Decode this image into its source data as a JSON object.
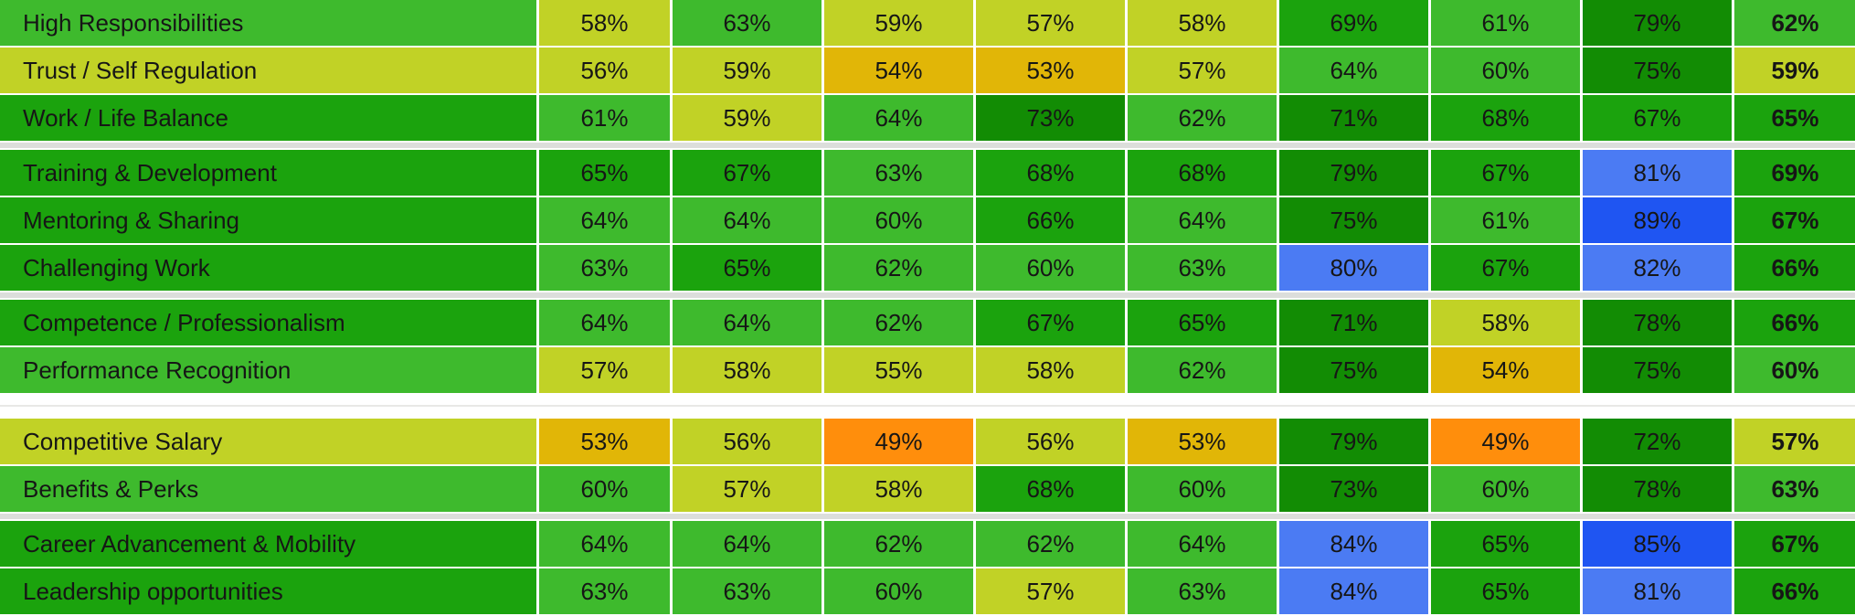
{
  "colors": {
    "o": "#ff8e0c",
    "y": "#e1b607",
    "yg": "#c1d226",
    "mg": "#3eba2d",
    "g": "#1ba30d",
    "dg": "#128c04",
    "b": "#4b7bf3",
    "db": "#1f55f2"
  },
  "chart_data": {
    "type": "heatmap",
    "value_suffix": "%",
    "value_columns": 9,
    "last_column_bold": true,
    "color_scale_hint": "orange=lowest, gold=low, yellow-green=mid-low, greens=mid-high, blue=highest",
    "groups": [
      {
        "gap_after": "band",
        "rows": [
          {
            "label": "High Responsibilities",
            "label_color": "mg",
            "cells": [
              {
                "v": "58%",
                "c": "yg"
              },
              {
                "v": "63%",
                "c": "mg"
              },
              {
                "v": "59%",
                "c": "yg"
              },
              {
                "v": "57%",
                "c": "yg"
              },
              {
                "v": "58%",
                "c": "yg"
              },
              {
                "v": "69%",
                "c": "g"
              },
              {
                "v": "61%",
                "c": "mg"
              },
              {
                "v": "79%",
                "c": "dg"
              },
              {
                "v": "62%",
                "c": "mg"
              }
            ]
          },
          {
            "label": "Trust / Self Regulation",
            "label_color": "yg",
            "cells": [
              {
                "v": "56%",
                "c": "yg"
              },
              {
                "v": "59%",
                "c": "yg"
              },
              {
                "v": "54%",
                "c": "y"
              },
              {
                "v": "53%",
                "c": "y"
              },
              {
                "v": "57%",
                "c": "yg"
              },
              {
                "v": "64%",
                "c": "mg"
              },
              {
                "v": "60%",
                "c": "mg"
              },
              {
                "v": "75%",
                "c": "dg"
              },
              {
                "v": "59%",
                "c": "yg"
              }
            ]
          },
          {
            "label": "Work / Life Balance",
            "label_color": "g",
            "cells": [
              {
                "v": "61%",
                "c": "mg"
              },
              {
                "v": "59%",
                "c": "yg"
              },
              {
                "v": "64%",
                "c": "mg"
              },
              {
                "v": "73%",
                "c": "dg"
              },
              {
                "v": "62%",
                "c": "mg"
              },
              {
                "v": "71%",
                "c": "dg"
              },
              {
                "v": "68%",
                "c": "g"
              },
              {
                "v": "67%",
                "c": "g"
              },
              {
                "v": "65%",
                "c": "g"
              }
            ]
          }
        ]
      },
      {
        "gap_after": "band",
        "rows": [
          {
            "label": "Training & Development",
            "label_color": "g",
            "cells": [
              {
                "v": "65%",
                "c": "g"
              },
              {
                "v": "67%",
                "c": "g"
              },
              {
                "v": "63%",
                "c": "mg"
              },
              {
                "v": "68%",
                "c": "g"
              },
              {
                "v": "68%",
                "c": "g"
              },
              {
                "v": "79%",
                "c": "dg"
              },
              {
                "v": "67%",
                "c": "g"
              },
              {
                "v": "81%",
                "c": "b"
              },
              {
                "v": "69%",
                "c": "g"
              }
            ]
          },
          {
            "label": "Mentoring & Sharing",
            "label_color": "g",
            "cells": [
              {
                "v": "64%",
                "c": "mg"
              },
              {
                "v": "64%",
                "c": "mg"
              },
              {
                "v": "60%",
                "c": "mg"
              },
              {
                "v": "66%",
                "c": "g"
              },
              {
                "v": "64%",
                "c": "mg"
              },
              {
                "v": "75%",
                "c": "dg"
              },
              {
                "v": "61%",
                "c": "mg"
              },
              {
                "v": "89%",
                "c": "db"
              },
              {
                "v": "67%",
                "c": "g"
              }
            ]
          },
          {
            "label": "Challenging Work",
            "label_color": "g",
            "cells": [
              {
                "v": "63%",
                "c": "mg"
              },
              {
                "v": "65%",
                "c": "g"
              },
              {
                "v": "62%",
                "c": "mg"
              },
              {
                "v": "60%",
                "c": "mg"
              },
              {
                "v": "63%",
                "c": "mg"
              },
              {
                "v": "80%",
                "c": "b"
              },
              {
                "v": "67%",
                "c": "g"
              },
              {
                "v": "82%",
                "c": "b"
              },
              {
                "v": "66%",
                "c": "g"
              }
            ]
          }
        ]
      },
      {
        "gap_after": "big",
        "rows": [
          {
            "label": "Competence / Professionalism",
            "label_color": "g",
            "cells": [
              {
                "v": "64%",
                "c": "mg"
              },
              {
                "v": "64%",
                "c": "mg"
              },
              {
                "v": "62%",
                "c": "mg"
              },
              {
                "v": "67%",
                "c": "g"
              },
              {
                "v": "65%",
                "c": "g"
              },
              {
                "v": "71%",
                "c": "dg"
              },
              {
                "v": "58%",
                "c": "yg"
              },
              {
                "v": "78%",
                "c": "dg"
              },
              {
                "v": "66%",
                "c": "g"
              }
            ]
          },
          {
            "label": "Performance Recognition",
            "label_color": "mg",
            "cells": [
              {
                "v": "57%",
                "c": "yg"
              },
              {
                "v": "58%",
                "c": "yg"
              },
              {
                "v": "55%",
                "c": "yg"
              },
              {
                "v": "58%",
                "c": "yg"
              },
              {
                "v": "62%",
                "c": "mg"
              },
              {
                "v": "75%",
                "c": "dg"
              },
              {
                "v": "54%",
                "c": "y"
              },
              {
                "v": "75%",
                "c": "dg"
              },
              {
                "v": "60%",
                "c": "mg"
              }
            ]
          }
        ]
      },
      {
        "gap_after": "band",
        "rows": [
          {
            "label": "Competitive Salary",
            "label_color": "yg",
            "cells": [
              {
                "v": "53%",
                "c": "y"
              },
              {
                "v": "56%",
                "c": "yg"
              },
              {
                "v": "49%",
                "c": "o"
              },
              {
                "v": "56%",
                "c": "yg"
              },
              {
                "v": "53%",
                "c": "y"
              },
              {
                "v": "79%",
                "c": "dg"
              },
              {
                "v": "49%",
                "c": "o"
              },
              {
                "v": "72%",
                "c": "dg"
              },
              {
                "v": "57%",
                "c": "yg"
              }
            ]
          },
          {
            "label": "Benefits & Perks",
            "label_color": "mg",
            "cells": [
              {
                "v": "60%",
                "c": "mg"
              },
              {
                "v": "57%",
                "c": "yg"
              },
              {
                "v": "58%",
                "c": "yg"
              },
              {
                "v": "68%",
                "c": "g"
              },
              {
                "v": "60%",
                "c": "mg"
              },
              {
                "v": "73%",
                "c": "dg"
              },
              {
                "v": "60%",
                "c": "mg"
              },
              {
                "v": "78%",
                "c": "dg"
              },
              {
                "v": "63%",
                "c": "mg"
              }
            ]
          }
        ]
      },
      {
        "gap_after": "none",
        "rows": [
          {
            "label": "Career Advancement & Mobility",
            "label_color": "g",
            "cells": [
              {
                "v": "64%",
                "c": "mg"
              },
              {
                "v": "64%",
                "c": "mg"
              },
              {
                "v": "62%",
                "c": "mg"
              },
              {
                "v": "62%",
                "c": "mg"
              },
              {
                "v": "64%",
                "c": "mg"
              },
              {
                "v": "84%",
                "c": "b"
              },
              {
                "v": "65%",
                "c": "g"
              },
              {
                "v": "85%",
                "c": "db"
              },
              {
                "v": "67%",
                "c": "g"
              }
            ]
          },
          {
            "label": "Leadership opportunities",
            "label_color": "g",
            "cells": [
              {
                "v": "63%",
                "c": "mg"
              },
              {
                "v": "63%",
                "c": "mg"
              },
              {
                "v": "60%",
                "c": "mg"
              },
              {
                "v": "57%",
                "c": "yg"
              },
              {
                "v": "63%",
                "c": "mg"
              },
              {
                "v": "84%",
                "c": "b"
              },
              {
                "v": "65%",
                "c": "g"
              },
              {
                "v": "81%",
                "c": "b"
              },
              {
                "v": "66%",
                "c": "g"
              }
            ]
          }
        ]
      }
    ]
  }
}
